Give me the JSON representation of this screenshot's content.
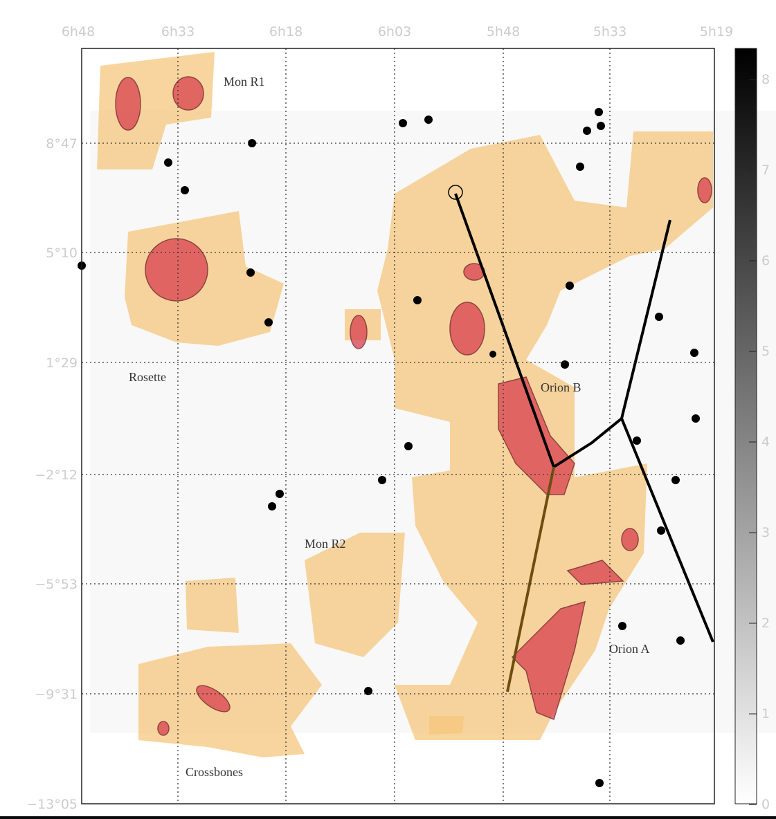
{
  "axes": {
    "ra_ticks": [
      "6h48",
      "6h33",
      "6h18",
      "6h03",
      "5h48",
      "5h33",
      "5h19"
    ],
    "dec_ticks": [
      "8°47",
      "5°10",
      "1°29",
      "−2°12",
      "−5°53",
      "−9°31",
      "−13°05"
    ]
  },
  "colorbar": {
    "ticks": [
      0,
      1,
      2,
      3,
      4,
      5,
      6,
      7,
      8
    ]
  },
  "regions": [
    "Mon R1",
    "Rosette",
    "Orion B",
    "Mon R2",
    "Orion A",
    "Crossbones"
  ]
}
